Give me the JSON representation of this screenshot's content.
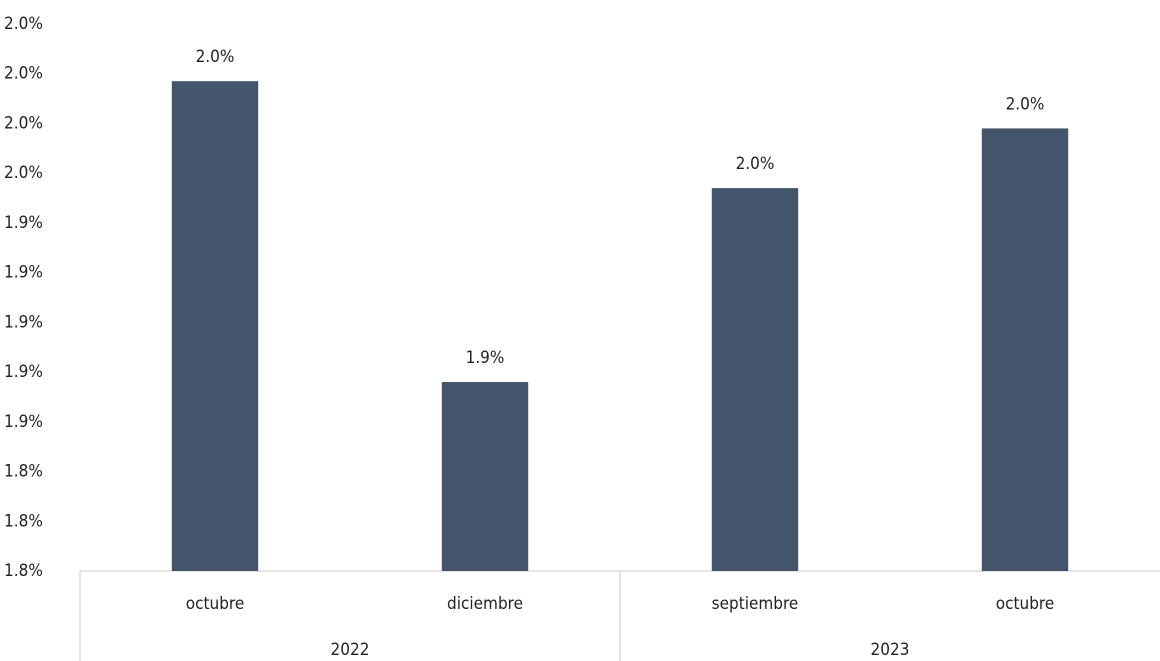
{
  "chart_data": {
    "type": "bar",
    "categories": [
      "octubre",
      "diciembre",
      "septiembre",
      "octubre"
    ],
    "groups": [
      {
        "label": "2022",
        "span": 2
      },
      {
        "label": "2023",
        "span": 2
      }
    ],
    "values": [
      1.997,
      1.876,
      1.954,
      1.978
    ],
    "value_labels": [
      "2.0%",
      "1.9%",
      "2.0%",
      "2.0%"
    ],
    "color": "#44546a",
    "ylim": [
      1.8,
      2.02
    ],
    "yticks": [
      {
        "value": 1.8,
        "label": "1.8%"
      },
      {
        "value": 1.82,
        "label": "1.8%"
      },
      {
        "value": 1.84,
        "label": "1.8%"
      },
      {
        "value": 1.86,
        "label": "1.9%"
      },
      {
        "value": 1.88,
        "label": "1.9%"
      },
      {
        "value": 1.9,
        "label": "1.9%"
      },
      {
        "value": 1.92,
        "label": "1.9%"
      },
      {
        "value": 1.94,
        "label": "1.9%"
      },
      {
        "value": 1.96,
        "label": "2.0%"
      },
      {
        "value": 1.98,
        "label": "2.0%"
      },
      {
        "value": 2.0,
        "label": "2.0%"
      },
      {
        "value": 2.02,
        "label": "2.0%"
      }
    ],
    "grid": false
  }
}
